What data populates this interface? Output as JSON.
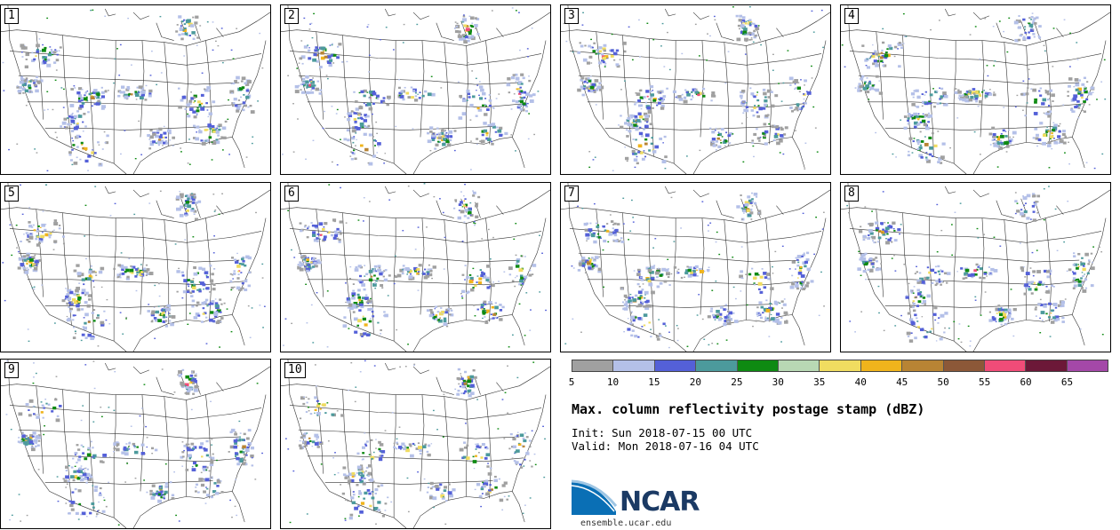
{
  "panels": [
    {
      "label": "1"
    },
    {
      "label": "2"
    },
    {
      "label": "3"
    },
    {
      "label": "4"
    },
    {
      "label": "5"
    },
    {
      "label": "6"
    },
    {
      "label": "7"
    },
    {
      "label": "8"
    },
    {
      "label": "9"
    },
    {
      "label": "10"
    }
  ],
  "colorbar": {
    "colors": [
      "#a0a0a0",
      "#b4c0e8",
      "#5460d8",
      "#4c9a9c",
      "#0e8a12",
      "#b8d8b4",
      "#f0dc60",
      "#f0b41c",
      "#b88434",
      "#8c5838",
      "#f04c78",
      "#6c1838",
      "#a448a8"
    ],
    "ticks": [
      "5",
      "10",
      "15",
      "20",
      "25",
      "30",
      "35",
      "40",
      "45",
      "50",
      "55",
      "60",
      "65"
    ]
  },
  "title": "Max. column reflectivity postage stamp (dBZ)",
  "init": "Init: Sun 2018-07-15 00 UTC",
  "valid": "Valid: Mon 2018-07-16 04 UTC",
  "logo": {
    "name": "NCAR",
    "url": "ensemble.ucar.edu"
  }
}
